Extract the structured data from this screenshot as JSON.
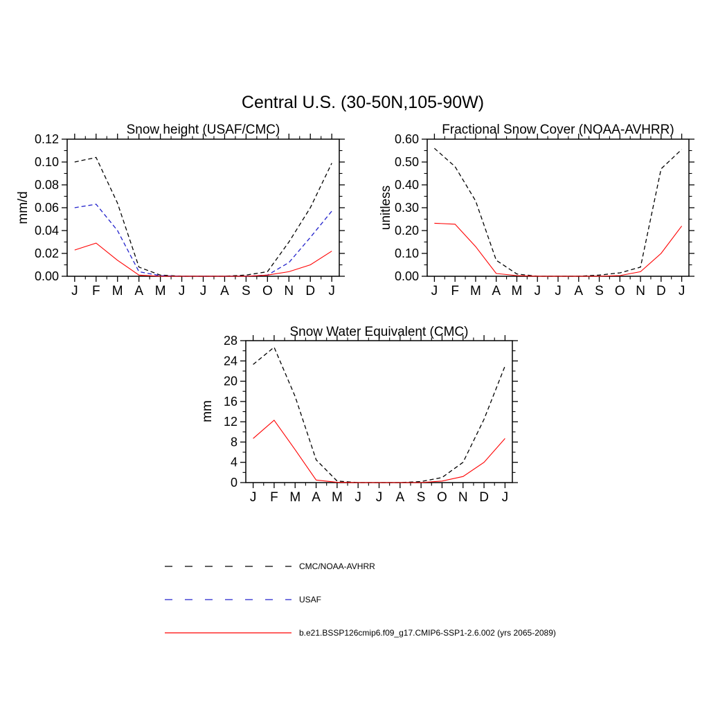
{
  "title": "Central U.S. (30-50N,105-90W)",
  "legend": {
    "items": [
      {
        "label": "CMC/NOAA-AVHRR",
        "color": "#000000",
        "style": "dashed"
      },
      {
        "label": "USAF",
        "color": "#2222cc",
        "style": "dashed"
      },
      {
        "label": "b.e21.BSSP126cmip6.f09_g17.CMIP6-SSP1-2.6.002 (yrs 2065-2089)",
        "color": "#ff0000",
        "style": "solid"
      }
    ]
  },
  "chart_data": [
    {
      "type": "line",
      "title": "Snow height (USAF/CMC)",
      "ylabel": "mm/d",
      "xlabel": "",
      "x_categories": [
        "J",
        "F",
        "M",
        "A",
        "M",
        "J",
        "J",
        "A",
        "S",
        "O",
        "N",
        "D",
        "J"
      ],
      "ylim": [
        0,
        0.12
      ],
      "ytick_step": 0.02,
      "ytick_decimals": 2,
      "grid": false,
      "series": [
        {
          "name": "CMC/NOAA-AVHRR",
          "color": "#000000",
          "style": "dashed",
          "values": [
            0.1,
            0.104,
            0.064,
            0.008,
            0.001,
            0.0,
            0.0,
            0.0,
            0.001,
            0.004,
            0.03,
            0.06,
            0.099
          ]
        },
        {
          "name": "USAF",
          "color": "#2222cc",
          "style": "dashed",
          "values": [
            0.06,
            0.063,
            0.04,
            0.004,
            0.0005,
            0.0,
            0.0,
            0.0,
            0.0,
            0.001,
            0.012,
            0.034,
            0.057
          ]
        },
        {
          "name": "b.e21.BSSP126cmip6.f09_g17.CMIP6-SSP1-2.6.002 (yrs 2065-2089)",
          "color": "#ff0000",
          "style": "solid",
          "values": [
            0.023,
            0.029,
            0.014,
            0.001,
            0.0,
            0.0,
            0.0,
            0.0,
            0.0,
            0.001,
            0.004,
            0.01,
            0.022
          ]
        }
      ]
    },
    {
      "type": "line",
      "title": "Fractional Snow Cover (NOAA-AVHRR)",
      "ylabel": "unitless",
      "xlabel": "",
      "x_categories": [
        "J",
        "F",
        "M",
        "A",
        "M",
        "J",
        "J",
        "A",
        "S",
        "O",
        "N",
        "D",
        "J"
      ],
      "ylim": [
        0,
        0.6
      ],
      "ytick_step": 0.1,
      "ytick_decimals": 2,
      "grid": false,
      "series": [
        {
          "name": "CMC/NOAA-AVHRR",
          "color": "#000000",
          "style": "dashed",
          "values": [
            0.56,
            0.48,
            0.33,
            0.07,
            0.01,
            0.0,
            0.0,
            0.0,
            0.005,
            0.015,
            0.04,
            0.47,
            0.555
          ]
        },
        {
          "name": "b.e21.BSSP126cmip6.f09_g17.CMIP6-SSP1-2.6.002 (yrs 2065-2089)",
          "color": "#ff0000",
          "style": "solid",
          "values": [
            0.232,
            0.228,
            0.13,
            0.012,
            0.003,
            0.0,
            0.0,
            0.0,
            0.0,
            0.003,
            0.02,
            0.1,
            0.22
          ]
        }
      ]
    },
    {
      "type": "line",
      "title": "Snow Water Equivalent (CMC)",
      "ylabel": "mm",
      "xlabel": "",
      "x_categories": [
        "J",
        "F",
        "M",
        "A",
        "M",
        "J",
        "J",
        "A",
        "S",
        "O",
        "N",
        "D",
        "J"
      ],
      "ylim": [
        0,
        28
      ],
      "ytick_step": 4,
      "ytick_decimals": 0,
      "grid": false,
      "series": [
        {
          "name": "CMC/NOAA-AVHRR",
          "color": "#000000",
          "style": "dashed",
          "values": [
            23.3,
            26.7,
            17.0,
            4.5,
            0.3,
            0.0,
            0.0,
            0.0,
            0.2,
            1.0,
            4.0,
            12.5,
            23.0
          ]
        },
        {
          "name": "b.e21.BSSP126cmip6.f09_g17.CMIP6-SSP1-2.6.002 (yrs 2065-2089)",
          "color": "#ff0000",
          "style": "solid",
          "values": [
            8.7,
            12.3,
            6.5,
            0.5,
            0.05,
            0.0,
            0.0,
            0.0,
            0.0,
            0.3,
            1.2,
            4.0,
            8.7
          ]
        }
      ]
    }
  ]
}
